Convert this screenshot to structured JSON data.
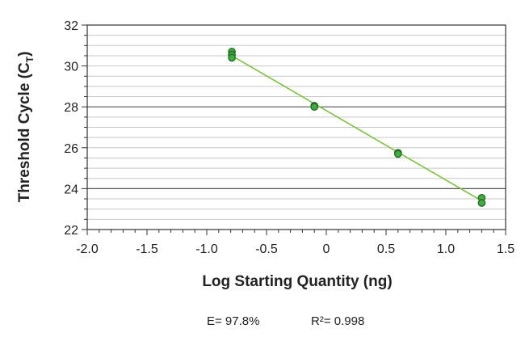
{
  "chart_data": {
    "type": "scatter",
    "title": "",
    "xlabel": "Log Starting Quantity (ng)",
    "ylabel_main": "Threshold Cycle (C",
    "ylabel_sub": "T",
    "ylabel_end": ")",
    "xlim": [
      -2.0,
      1.5
    ],
    "ylim": [
      22,
      32
    ],
    "xticks": [
      -2.0,
      -1.5,
      -1.0,
      -0.5,
      0,
      0.5,
      1.0,
      1.5
    ],
    "xtick_labels": [
      "-2.0",
      "-1.5",
      "-1.0",
      "-0.5",
      "0",
      "0.5",
      "1.0",
      "1.5"
    ],
    "yticks": [
      22,
      24,
      26,
      28,
      30,
      32
    ],
    "ytick_labels": [
      "22",
      "24",
      "26",
      "28",
      "30",
      "32"
    ],
    "grid": true,
    "series": [
      {
        "x": [
          -0.79,
          -0.79,
          -0.79,
          -0.1,
          -0.1,
          0.6,
          0.6,
          1.3,
          1.3
        ],
        "y": [
          30.7,
          30.55,
          30.4,
          28.05,
          28.0,
          25.75,
          25.7,
          23.55,
          23.3
        ]
      }
    ],
    "fit_line": {
      "x": [
        -0.82,
        1.33
      ],
      "y": [
        30.6,
        23.3
      ]
    },
    "colors": {
      "points": "#3fae3f",
      "point_edge": "#1f5f1f",
      "fit": "#7dc242",
      "grid_minor": "#c8c8c8",
      "grid_major": "#555555"
    }
  },
  "stats": {
    "efficiency": "E= 97.8%",
    "r_squared": "R²= 0.998"
  }
}
